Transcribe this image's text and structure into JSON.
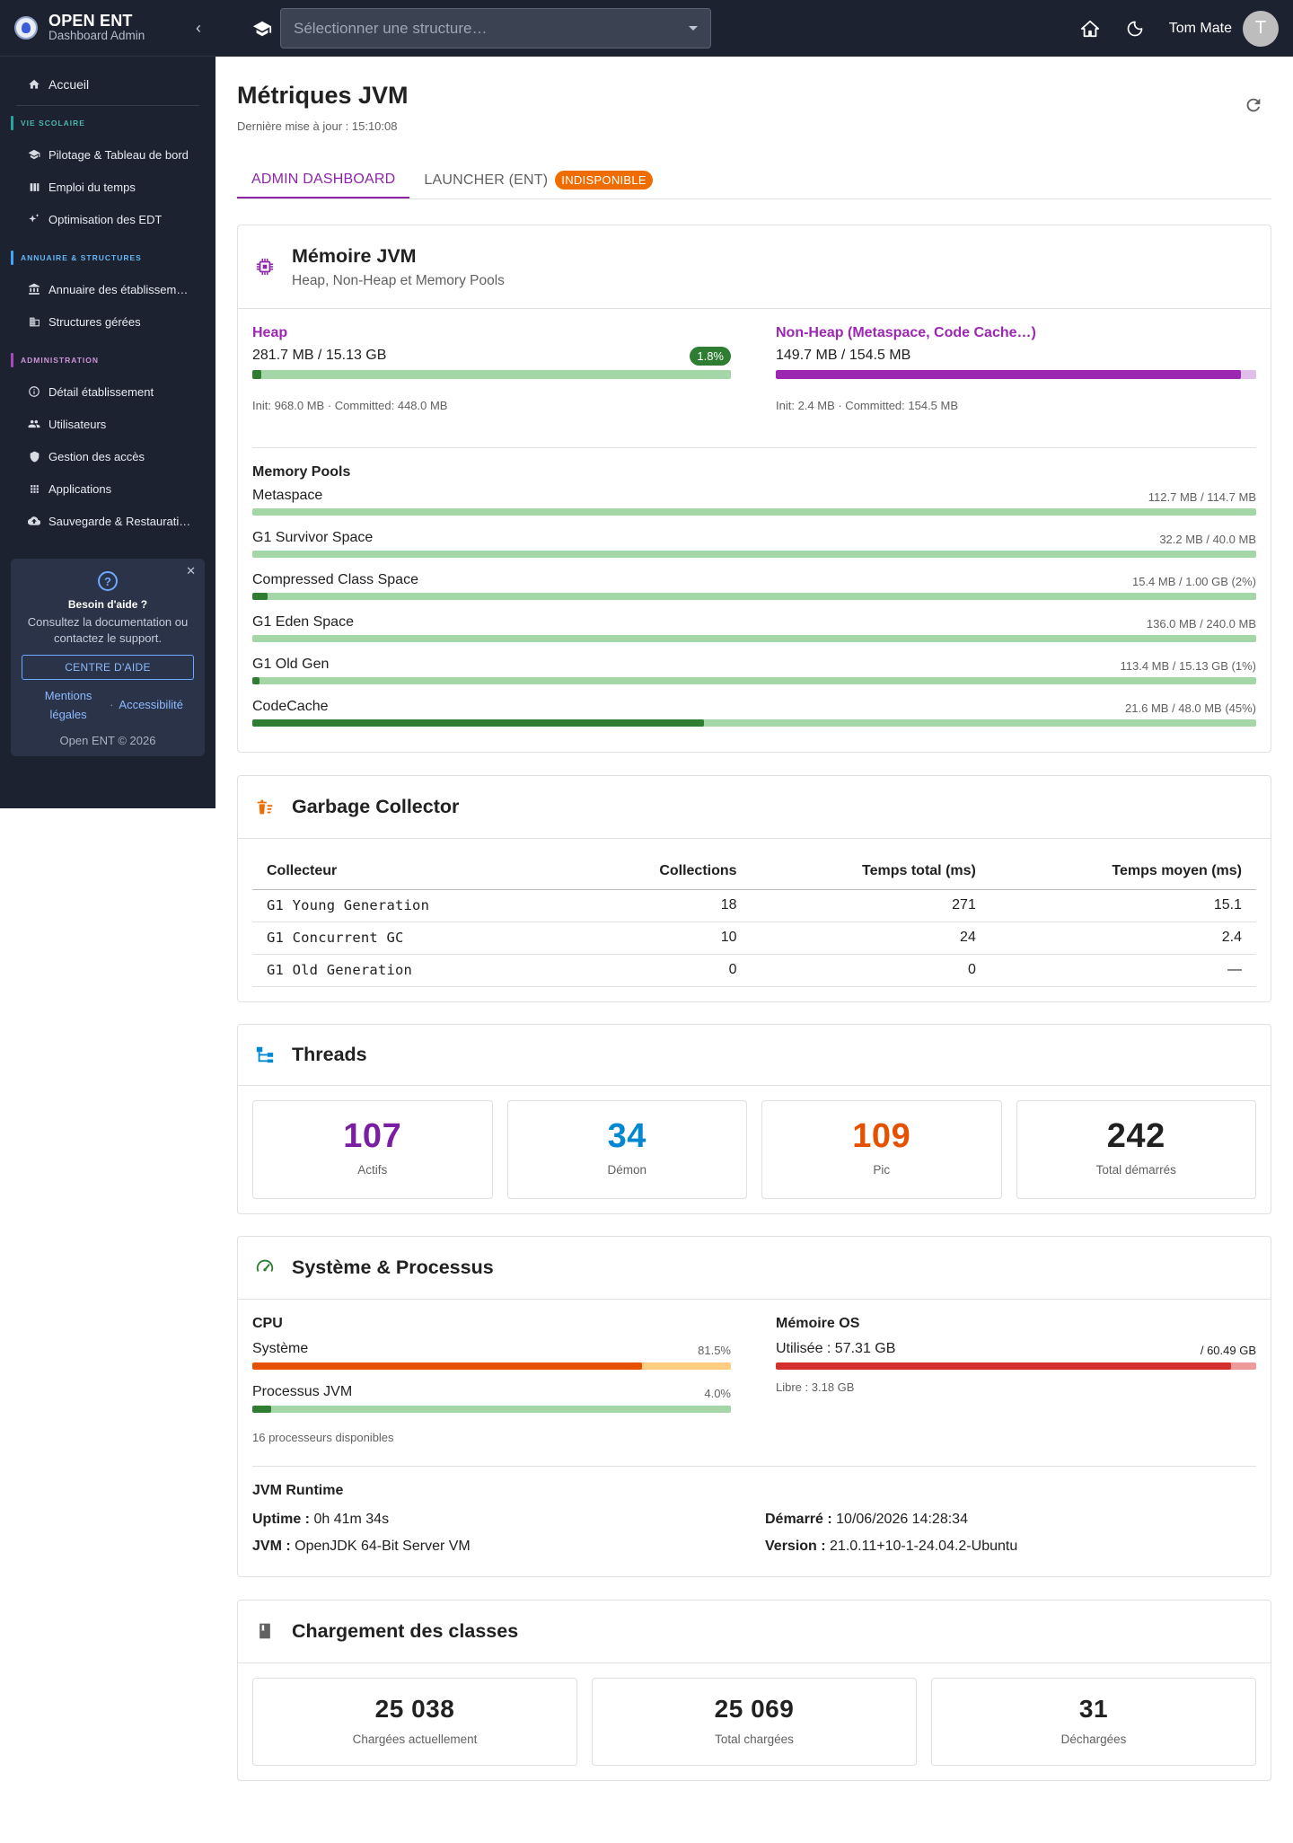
{
  "app": {
    "title": "OPEN ENT",
    "subtitle": "Dashboard Admin"
  },
  "sidebar": {
    "home": "Accueil",
    "sections": [
      {
        "label": "VIE SCOLAIRE",
        "color": "#26a69a",
        "items": [
          "Pilotage & Tableau de bord",
          "Emploi du temps",
          "Optimisation des EDT"
        ]
      },
      {
        "label": "ANNUAIRE & STRUCTURES",
        "color": "#42a5f5",
        "items": [
          "Annuaire des établissem…",
          "Structures gérées"
        ]
      },
      {
        "label": "ADMINISTRATION",
        "color": "#ab47bc",
        "items": [
          "Détail établissement",
          "Utilisateurs",
          "Gestion des accès",
          "Applications",
          "Sauvegarde & Restaurati…"
        ]
      }
    ],
    "help": {
      "title": "Besoin d'aide ?",
      "text": "Consultez la documentation ou contactez le support.",
      "button": "CENTRE D'AIDE",
      "link_mentions": "Mentions légales",
      "link_access": "Accessibilité",
      "footer": "Open ENT © 2026"
    }
  },
  "topbar": {
    "structure_placeholder": "Sélectionner une structure…",
    "user_name": "Tom Mate",
    "avatar_initial": "T"
  },
  "page": {
    "title": "Métriques JVM",
    "last_update": "Dernière mise à jour : 15:10:08"
  },
  "tabs": [
    {
      "label": "ADMIN DASHBOARD",
      "active": true
    },
    {
      "label": "LAUNCHER (ENT)",
      "badge": "INDISPONIBLE"
    }
  ],
  "memory": {
    "title": "Mémoire JVM",
    "subtitle": "Heap, Non-Heap et Memory Pools",
    "heap": {
      "label": "Heap",
      "value": "281.7 MB / 15.13 GB",
      "percent_badge": "1.8%",
      "percent": 1.8,
      "detail": "Init: 968.0 MB · Committed: 448.0 MB"
    },
    "nonheap": {
      "label": "Non-Heap (Metaspace, Code Cache…)",
      "value": "149.7 MB / 154.5 MB",
      "percent": 96.9,
      "detail": "Init: 2.4 MB · Committed: 154.5 MB"
    },
    "pools_title": "Memory Pools",
    "pools": [
      {
        "name": "Metaspace",
        "value": "112.7 MB / 114.7 MB",
        "percent": 0
      },
      {
        "name": "G1 Survivor Space",
        "value": "32.2 MB / 40.0 MB",
        "percent": 0
      },
      {
        "name": "Compressed Class Space",
        "value": "15.4 MB / 1.00 GB (2%)",
        "percent": 1.5
      },
      {
        "name": "G1 Eden Space",
        "value": "136.0 MB / 240.0 MB",
        "percent": 0
      },
      {
        "name": "G1 Old Gen",
        "value": "113.4 MB / 15.13 GB (1%)",
        "percent": 0.7
      },
      {
        "name": "CodeCache",
        "value": "21.6 MB / 48.0 MB (45%)",
        "percent": 45
      }
    ]
  },
  "gc": {
    "title": "Garbage Collector",
    "headers": [
      "Collecteur",
      "Collections",
      "Temps total (ms)",
      "Temps moyen (ms)"
    ],
    "rows": [
      [
        "G1 Young Generation",
        "18",
        "271",
        "15.1"
      ],
      [
        "G1 Concurrent GC",
        "10",
        "24",
        "2.4"
      ],
      [
        "G1 Old Generation",
        "0",
        "0",
        "—"
      ]
    ]
  },
  "threads": {
    "title": "Threads",
    "stats": [
      {
        "value": "107",
        "label": "Actifs",
        "color": "#7b1fa2"
      },
      {
        "value": "34",
        "label": "Démon",
        "color": "#0288d1"
      },
      {
        "value": "109",
        "label": "Pic",
        "color": "#e65100"
      },
      {
        "value": "242",
        "label": "Total démarrés",
        "color": "#212121"
      }
    ]
  },
  "system": {
    "title": "Système & Processus",
    "cpu_title": "CPU",
    "cpu_system": {
      "label": "Système",
      "value": "81.5%",
      "percent": 81.5
    },
    "cpu_jvm": {
      "label": "Processus JVM",
      "value": "4.0%",
      "percent": 4.0
    },
    "processors": "16 processeurs disponibles",
    "os_title": "Mémoire OS",
    "os_used_label": "Utilisée : 57.31 GB",
    "os_total": "/ 60.49 GB",
    "os_percent": 94.7,
    "os_free": "Libre : 3.18 GB",
    "runtime_title": "JVM Runtime",
    "uptime_label": "Uptime :",
    "uptime_value": "0h 41m 34s",
    "started_label": "Démarré :",
    "started_value": "10/06/2026 14:28:34",
    "jvm_label": "JVM :",
    "jvm_value": "OpenJDK 64-Bit Server VM",
    "version_label": "Version :",
    "version_value": "21.0.11+10-1-24.04.2-Ubuntu"
  },
  "classes": {
    "title": "Chargement des classes",
    "stats": [
      {
        "value": "25 038",
        "label": "Chargées actuellement"
      },
      {
        "value": "25 069",
        "label": "Total chargées"
      },
      {
        "value": "31",
        "label": "Déchargées"
      }
    ]
  },
  "colors": {
    "purple": "#9c27b0",
    "green": "#2e7d32",
    "green_track": "#a5d6a7",
    "orange": "#ef6c00",
    "red": "#d32f2f"
  }
}
